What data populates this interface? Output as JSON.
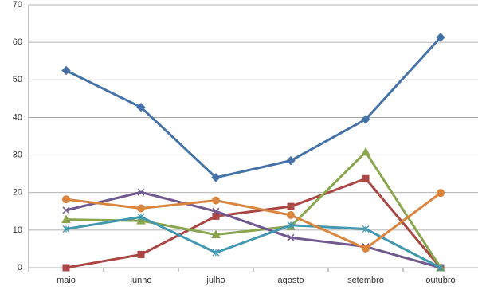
{
  "chart_data": {
    "type": "line",
    "categories": [
      "maio",
      "junho",
      "julho",
      "agosto",
      "setembro",
      "outubro"
    ],
    "series": [
      {
        "color": "#4572a7",
        "marker": "diamond",
        "values": [
          52.5,
          42.7,
          24,
          28.5,
          39.5,
          61.3
        ]
      },
      {
        "color": "#aa4643",
        "marker": "square",
        "values": [
          0,
          3.5,
          13.7,
          16.3,
          23.7,
          0
        ]
      },
      {
        "color": "#89a54e",
        "marker": "triangle",
        "values": [
          12.8,
          12.5,
          8.8,
          11,
          30.8,
          0
        ]
      },
      {
        "color": "#71588f",
        "marker": "x",
        "values": [
          15.3,
          20.1,
          15,
          8,
          5.6,
          0
        ]
      },
      {
        "color": "#4198af",
        "marker": "star",
        "values": [
          10.3,
          13.5,
          4,
          11.3,
          10.3,
          0
        ]
      },
      {
        "color": "#db843d",
        "marker": "circle",
        "values": [
          18.2,
          15.8,
          17.9,
          14,
          5.1,
          19.9
        ]
      }
    ],
    "ylim": [
      0,
      70
    ],
    "yticks": [
      0,
      10,
      20,
      30,
      40,
      50,
      60,
      70
    ],
    "grid": true
  }
}
